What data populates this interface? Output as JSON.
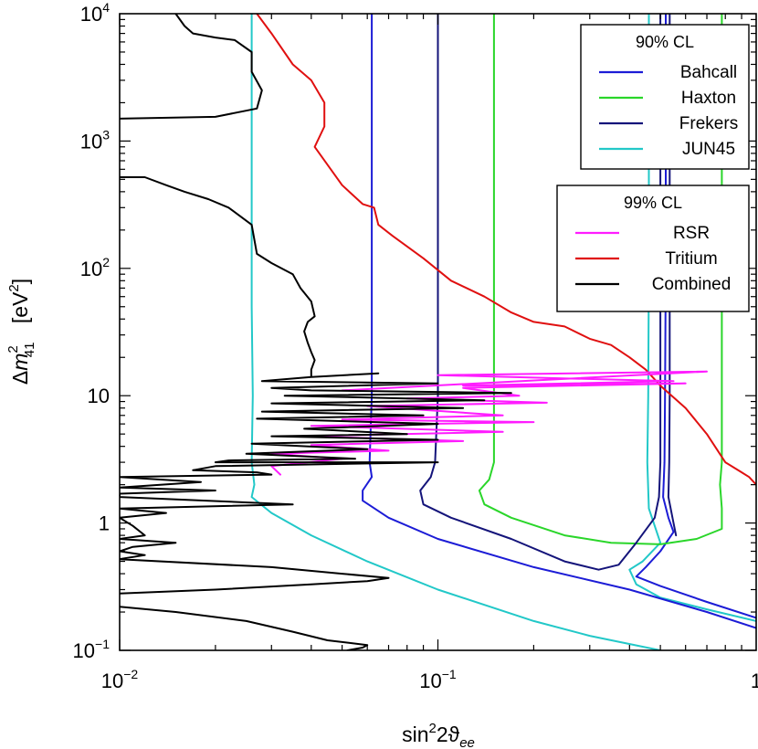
{
  "chart_data": {
    "type": "line",
    "xscale": "log",
    "yscale": "log",
    "xlim": [
      0.01,
      1
    ],
    "ylim": [
      0.1,
      10000
    ],
    "xlabel": {
      "base": "sin",
      "sup": "2",
      "mid": "2ϑ",
      "sub": "ee"
    },
    "ylabel": {
      "delta": "Δ",
      "m": "m",
      "sup": "2",
      "sub": "41",
      "unit_open": "[eV",
      "unit_sup": "2",
      "unit_close": "]"
    },
    "xticks": [
      {
        "value": 0.01,
        "base": "10",
        "exp": "−2"
      },
      {
        "value": 0.1,
        "base": "10",
        "exp": "−1"
      },
      {
        "value": 1,
        "base": "1",
        "exp": ""
      }
    ],
    "yticks": [
      {
        "value": 0.1,
        "base": "10",
        "exp": "−1"
      },
      {
        "value": 1,
        "base": "1",
        "exp": ""
      },
      {
        "value": 10,
        "base": "10",
        "exp": ""
      },
      {
        "value": 100,
        "base": "10",
        "exp": "2"
      },
      {
        "value": 1000,
        "base": "10",
        "exp": "3"
      },
      {
        "value": 10000,
        "base": "10",
        "exp": "4"
      }
    ],
    "legends": [
      {
        "title": "90% CL",
        "entries": [
          {
            "label": "Bahcall",
            "color": "#1c1cd6"
          },
          {
            "label": "Haxton",
            "color": "#2ad62a"
          },
          {
            "label": "Frekers",
            "color": "#14147a"
          },
          {
            "label": "JUN45",
            "color": "#22c8c8"
          }
        ]
      },
      {
        "title": "99% CL",
        "entries": [
          {
            "label": "RSR",
            "color": "#ff1cff"
          },
          {
            "label": "Tritium",
            "color": "#e01010"
          },
          {
            "label": "Combined",
            "color": "#000000"
          }
        ]
      }
    ],
    "series": [
      {
        "name": "JUN45",
        "color": "#22c8c8",
        "points": [
          [
            0.026,
            10000
          ],
          [
            0.026,
            50
          ],
          [
            0.0262,
            10
          ],
          [
            0.026,
            3
          ],
          [
            0.0265,
            2
          ],
          [
            0.026,
            1.6
          ],
          [
            0.03,
            1.2
          ],
          [
            0.04,
            0.8
          ],
          [
            0.06,
            0.5
          ],
          [
            0.1,
            0.3
          ],
          [
            0.2,
            0.17
          ],
          [
            0.3,
            0.13
          ],
          [
            0.5,
            0.1
          ]
        ]
      },
      {
        "name": "JUN45",
        "color": "#22c8c8",
        "points": [
          [
            0.46,
            10000
          ],
          [
            0.46,
            100
          ],
          [
            0.458,
            10
          ],
          [
            0.455,
            3
          ],
          [
            0.46,
            1.3
          ],
          [
            0.5,
            0.7
          ],
          [
            0.44,
            0.5
          ],
          [
            0.4,
            0.43
          ],
          [
            0.42,
            0.33
          ],
          [
            0.5,
            0.26
          ],
          [
            0.7,
            0.21
          ],
          [
            1,
            0.17
          ]
        ]
      },
      {
        "name": "Bahcall",
        "color": "#1c1cd6",
        "points": [
          [
            0.062,
            10000
          ],
          [
            0.062,
            100
          ],
          [
            0.062,
            10
          ],
          [
            0.061,
            3
          ],
          [
            0.062,
            2.3
          ],
          [
            0.058,
            1.8
          ],
          [
            0.058,
            1.5
          ],
          [
            0.07,
            1.1
          ],
          [
            0.1,
            0.75
          ],
          [
            0.2,
            0.45
          ],
          [
            0.4,
            0.3
          ],
          [
            0.7,
            0.2
          ],
          [
            1,
            0.15
          ]
        ]
      },
      {
        "name": "Bahcall",
        "color": "#1c1cd6",
        "points": [
          [
            0.52,
            10000
          ],
          [
            0.52,
            100
          ],
          [
            0.517,
            10
          ],
          [
            0.515,
            3
          ],
          [
            0.51,
            1.6
          ],
          [
            0.53,
            1.1
          ],
          [
            0.55,
            0.85
          ],
          [
            0.5,
            0.6
          ],
          [
            0.45,
            0.45
          ],
          [
            0.42,
            0.38
          ],
          [
            0.5,
            0.32
          ],
          [
            0.7,
            0.24
          ],
          [
            1,
            0.18
          ]
        ]
      },
      {
        "name": "Haxton",
        "color": "#2ad62a",
        "points": [
          [
            0.15,
            10000
          ],
          [
            0.15,
            100
          ],
          [
            0.15,
            10
          ],
          [
            0.15,
            3
          ],
          [
            0.145,
            2.2
          ],
          [
            0.135,
            1.8
          ],
          [
            0.14,
            1.4
          ],
          [
            0.17,
            1.1
          ],
          [
            0.25,
            0.8
          ],
          [
            0.35,
            0.7
          ],
          [
            0.5,
            0.68
          ],
          [
            0.65,
            0.75
          ],
          [
            0.78,
            0.9
          ],
          [
            0.78,
            1.3
          ],
          [
            0.77,
            2
          ],
          [
            0.78,
            3
          ],
          [
            0.78,
            10
          ],
          [
            0.78,
            100
          ],
          [
            0.78,
            10000
          ]
        ]
      },
      {
        "name": "Frekers",
        "color": "#14147a",
        "points": [
          [
            0.1,
            10000
          ],
          [
            0.1,
            100
          ],
          [
            0.1,
            10
          ],
          [
            0.098,
            3
          ],
          [
            0.095,
            2.3
          ],
          [
            0.088,
            1.8
          ],
          [
            0.09,
            1.4
          ],
          [
            0.11,
            1.1
          ],
          [
            0.17,
            0.75
          ],
          [
            0.25,
            0.5
          ],
          [
            0.32,
            0.43
          ],
          [
            0.37,
            0.47
          ],
          [
            0.42,
            0.7
          ],
          [
            0.48,
            1.1
          ],
          [
            0.495,
            1.6
          ],
          [
            0.5,
            3
          ],
          [
            0.5,
            10
          ],
          [
            0.5,
            100
          ],
          [
            0.5,
            10000
          ]
        ]
      },
      {
        "name": "Frekers",
        "color": "#14147a",
        "points": [
          [
            0.535,
            10000
          ],
          [
            0.535,
            100
          ],
          [
            0.535,
            10
          ],
          [
            0.533,
            3
          ],
          [
            0.53,
            1.6
          ],
          [
            0.55,
            1.0
          ],
          [
            0.56,
            0.8
          ]
        ]
      },
      {
        "name": "Tritium",
        "color": "#e01010",
        "points": [
          [
            0.027,
            10000
          ],
          [
            0.03,
            7000
          ],
          [
            0.035,
            4000
          ],
          [
            0.04,
            3000
          ],
          [
            0.044,
            2000
          ],
          [
            0.044,
            1300
          ],
          [
            0.041,
            900
          ],
          [
            0.05,
            450
          ],
          [
            0.058,
            320
          ],
          [
            0.063,
            300
          ],
          [
            0.065,
            220
          ],
          [
            0.072,
            180
          ],
          [
            0.09,
            120
          ],
          [
            0.11,
            80
          ],
          [
            0.14,
            60
          ],
          [
            0.17,
            45
          ],
          [
            0.2,
            38
          ],
          [
            0.25,
            35
          ],
          [
            0.3,
            28
          ],
          [
            0.35,
            25
          ],
          [
            0.4,
            20
          ],
          [
            0.45,
            16
          ],
          [
            0.5,
            12
          ],
          [
            0.6,
            8
          ],
          [
            0.7,
            5
          ],
          [
            0.8,
            3
          ],
          [
            0.9,
            2.5
          ],
          [
            0.95,
            2.3
          ],
          [
            1,
            2
          ]
        ]
      },
      {
        "name": "RSR",
        "color": "#ff1cff",
        "points": [
          [
            0.05,
            11
          ],
          [
            0.7,
            15.5
          ],
          [
            0.1,
            14.5
          ],
          [
            0.55,
            13
          ],
          [
            0.12,
            12
          ],
          [
            0.6,
            12.5
          ],
          [
            0.12,
            11.5
          ],
          [
            0.18,
            10
          ],
          [
            0.08,
            9.5
          ],
          [
            0.22,
            8.8
          ],
          [
            0.06,
            8.3
          ],
          [
            0.16,
            7
          ],
          [
            0.05,
            6.5
          ],
          [
            0.2,
            6.2
          ],
          [
            0.04,
            5.8
          ],
          [
            0.16,
            5.2
          ],
          [
            0.038,
            4.8
          ],
          [
            0.12,
            4.4
          ],
          [
            0.04,
            4.1
          ],
          [
            0.07,
            3.7
          ],
          [
            0.03,
            3.5
          ],
          [
            0.05,
            3.2
          ],
          [
            0.03,
            2.8
          ],
          [
            0.032,
            2.4
          ]
        ]
      },
      {
        "name": "Combined",
        "color": "#000000",
        "points": [
          [
            0.015,
            10000
          ],
          [
            0.016,
            8000
          ],
          [
            0.017,
            7000
          ],
          [
            0.02,
            6500
          ],
          [
            0.023,
            6200
          ],
          [
            0.026,
            5000
          ],
          [
            0.026,
            3500
          ],
          [
            0.028,
            2500
          ],
          [
            0.027,
            1800
          ],
          [
            0.02,
            1550
          ],
          [
            0.01,
            1500
          ]
        ]
      },
      {
        "name": "Combined",
        "color": "#000000",
        "points": [
          [
            0.01,
            520
          ],
          [
            0.012,
            520
          ],
          [
            0.014,
            450
          ],
          [
            0.016,
            400
          ],
          [
            0.019,
            350
          ],
          [
            0.022,
            300
          ],
          [
            0.026,
            220
          ],
          [
            0.027,
            130
          ],
          [
            0.03,
            110
          ],
          [
            0.035,
            90
          ],
          [
            0.037,
            70
          ],
          [
            0.04,
            55
          ],
          [
            0.041,
            42
          ],
          [
            0.039,
            38
          ],
          [
            0.038,
            32
          ],
          [
            0.039,
            26
          ],
          [
            0.04,
            22
          ],
          [
            0.041,
            19
          ],
          [
            0.04,
            16
          ],
          [
            0.04,
            14
          ],
          [
            0.065,
            15
          ],
          [
            0.04,
            14
          ],
          [
            0.028,
            13
          ],
          [
            0.1,
            12.5
          ],
          [
            0.03,
            11.5
          ],
          [
            0.04,
            11
          ],
          [
            0.17,
            10.5
          ],
          [
            0.033,
            10
          ],
          [
            0.14,
            9.2
          ],
          [
            0.03,
            8.7
          ],
          [
            0.12,
            8
          ],
          [
            0.028,
            7.5
          ],
          [
            0.09,
            7
          ],
          [
            0.027,
            6.6
          ],
          [
            0.1,
            6
          ],
          [
            0.038,
            5.5
          ],
          [
            0.08,
            5
          ],
          [
            0.03,
            4.8
          ],
          [
            0.1,
            4.5
          ],
          [
            0.026,
            4.2
          ],
          [
            0.06,
            3.8
          ],
          [
            0.025,
            3.5
          ],
          [
            0.055,
            3.2
          ],
          [
            0.022,
            3.1
          ],
          [
            0.02,
            3
          ],
          [
            0.1,
            3
          ],
          [
            0.02,
            2.8
          ],
          [
            0.017,
            2.6
          ],
          [
            0.027,
            2.5
          ],
          [
            0.03,
            2.4
          ],
          [
            0.01,
            2.3
          ],
          [
            0.018,
            2.1
          ],
          [
            0.01,
            1.9
          ],
          [
            0.02,
            1.8
          ],
          [
            0.01,
            1.7
          ],
          [
            0.01,
            1.6
          ],
          [
            0.035,
            1.4
          ],
          [
            0.01,
            1.3
          ],
          [
            0.014,
            1.2
          ],
          [
            0.01,
            1.1
          ],
          [
            0.011,
            0.95
          ],
          [
            0.012,
            0.8
          ],
          [
            0.01,
            0.75
          ],
          [
            0.015,
            0.7
          ],
          [
            0.011,
            0.65
          ],
          [
            0.01,
            0.6
          ],
          [
            0.012,
            0.56
          ],
          [
            0.01,
            0.52
          ],
          [
            0.03,
            0.45
          ],
          [
            0.05,
            0.4
          ],
          [
            0.07,
            0.37
          ],
          [
            0.06,
            0.35
          ],
          [
            0.04,
            0.33
          ],
          [
            0.02,
            0.3
          ],
          [
            0.01,
            0.28
          ]
        ]
      },
      {
        "name": "Combined",
        "color": "#000000",
        "points": [
          [
            0.01,
            0.22
          ],
          [
            0.015,
            0.2
          ],
          [
            0.025,
            0.17
          ],
          [
            0.035,
            0.14
          ],
          [
            0.045,
            0.12
          ],
          [
            0.06,
            0.11
          ],
          [
            0.058,
            0.105
          ],
          [
            0.052,
            0.1
          ]
        ]
      }
    ]
  }
}
